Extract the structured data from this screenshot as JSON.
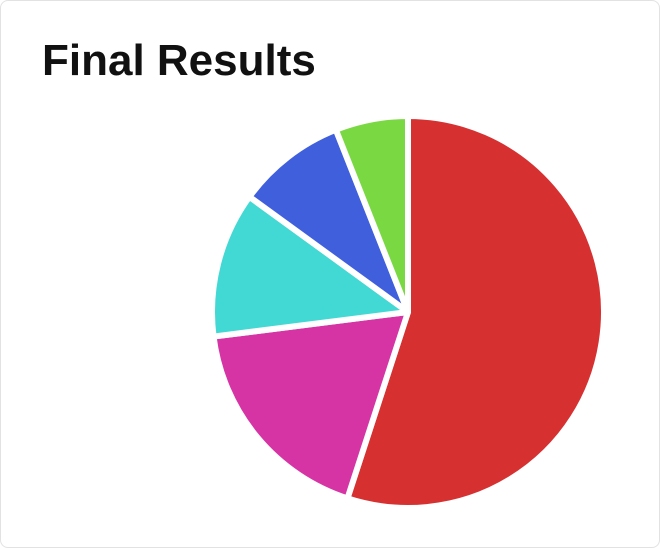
{
  "chart_data": {
    "type": "pie",
    "title": "Final Results",
    "values": [
      55,
      18,
      12,
      9,
      6
    ],
    "colors": [
      "#d63031",
      "#d633a4",
      "#42d9d4",
      "#3f5fdd",
      "#7ad943"
    ]
  }
}
